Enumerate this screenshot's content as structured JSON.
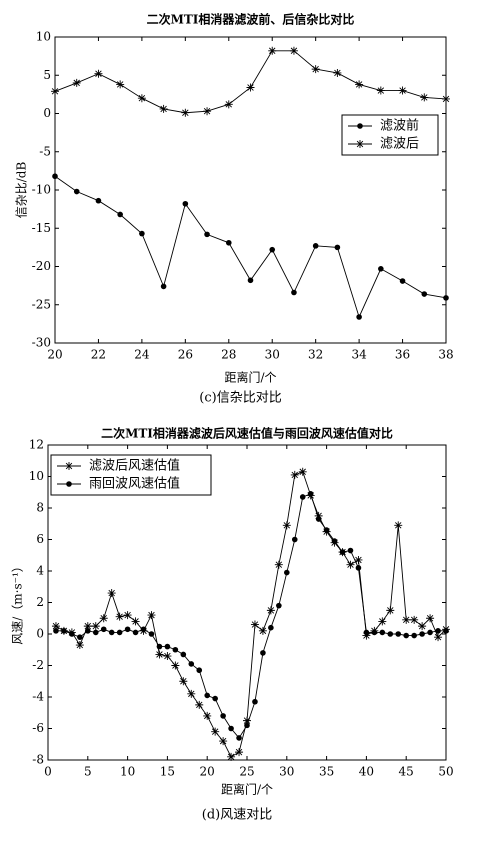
{
  "chart_data": [
    {
      "type": "line",
      "title": "二次MTI相消器滤波前、后信杂比对比",
      "x_label": "距离门/个",
      "y_label": "信杂比/dB",
      "caption": "(c)信杂比对比",
      "x": [
        20,
        21,
        22,
        23,
        24,
        25,
        26,
        27,
        28,
        29,
        30,
        31,
        32,
        33,
        34,
        35,
        36,
        37,
        38
      ],
      "xlim": [
        20,
        38
      ],
      "xticks": [
        20,
        22,
        24,
        26,
        28,
        30,
        32,
        34,
        36,
        38
      ],
      "ylim": [
        -30,
        10
      ],
      "yticks": [
        -30,
        -25,
        -20,
        -15,
        -10,
        -5,
        0,
        5,
        10
      ],
      "legend": "right",
      "grid": false,
      "series": [
        {
          "name": "滤波前",
          "color": "#000000",
          "marker": "o",
          "values": [
            -8.2,
            -10.2,
            -11.4,
            -13.2,
            -15.7,
            -22.6,
            -11.8,
            -15.8,
            -16.9,
            -21.8,
            -17.8,
            -23.4,
            -17.3,
            -17.5,
            -26.6,
            -20.3,
            -21.9,
            -23.6,
            -24.1
          ]
        },
        {
          "name": "滤波后",
          "color": "#000000",
          "marker": "*",
          "values": [
            2.9,
            4.0,
            5.2,
            3.8,
            2.0,
            0.6,
            0.1,
            0.3,
            1.2,
            3.4,
            8.2,
            8.2,
            5.8,
            5.3,
            3.8,
            3.0,
            3.0,
            2.1,
            1.9
          ]
        }
      ]
    },
    {
      "type": "line",
      "title": "二次MTI相消器滤波后风速估值与雨回波风速估值对比",
      "x_label": "距离门/个",
      "y_label": "风速/（m·s⁻¹）",
      "caption": "(d)风速对比",
      "x": [
        1,
        2,
        3,
        4,
        5,
        6,
        7,
        8,
        9,
        10,
        11,
        12,
        13,
        14,
        15,
        16,
        17,
        18,
        19,
        20,
        21,
        22,
        23,
        24,
        25,
        26,
        27,
        28,
        29,
        30,
        31,
        32,
        33,
        34,
        35,
        36,
        37,
        38,
        39,
        40,
        41,
        42,
        43,
        44,
        45,
        46,
        47,
        48,
        49,
        50
      ],
      "xlim": [
        0,
        50
      ],
      "xticks": [
        0,
        5,
        10,
        15,
        20,
        25,
        30,
        35,
        40,
        45,
        50
      ],
      "ylim": [
        -8,
        12
      ],
      "yticks": [
        -8,
        -6,
        -4,
        -2,
        0,
        2,
        4,
        6,
        8,
        10,
        12
      ],
      "legend": "upper left",
      "grid": false,
      "series": [
        {
          "name": "滤波后风速估值",
          "color": "#000000",
          "marker": "*",
          "values": [
            0.5,
            0.2,
            0.1,
            -0.7,
            0.5,
            0.5,
            1.0,
            2.6,
            1.1,
            1.2,
            0.8,
            0.2,
            1.2,
            -1.3,
            -1.4,
            -2.0,
            -3.0,
            -3.8,
            -4.5,
            -5.2,
            -6.2,
            -6.8,
            -7.8,
            -7.5,
            -5.5,
            0.6,
            0.2,
            1.5,
            4.4,
            6.9,
            10.1,
            10.3,
            8.8,
            7.5,
            6.5,
            5.8,
            5.2,
            4.4,
            4.7,
            -0.1,
            0.2,
            0.8,
            1.5,
            6.9,
            0.9,
            0.9,
            0.5,
            1.0,
            -0.2,
            0.3
          ]
        },
        {
          "name": "雨回波风速估值",
          "color": "#000000",
          "marker": "o",
          "values": [
            0.2,
            0.2,
            0.0,
            -0.2,
            0.2,
            0.1,
            0.3,
            0.1,
            0.1,
            0.3,
            0.1,
            0.3,
            0.0,
            -0.8,
            -0.8,
            -1.0,
            -1.3,
            -1.9,
            -2.3,
            -3.9,
            -4.1,
            -5.2,
            -6.0,
            -6.6,
            -5.8,
            -4.3,
            -1.2,
            0.4,
            1.8,
            3.9,
            6.0,
            8.7,
            8.9,
            7.3,
            6.6,
            5.9,
            5.2,
            5.3,
            4.2,
            0.1,
            0.1,
            0.1,
            0.0,
            0.0,
            -0.1,
            -0.1,
            0.0,
            0.1,
            0.2,
            0.2
          ]
        }
      ]
    }
  ]
}
